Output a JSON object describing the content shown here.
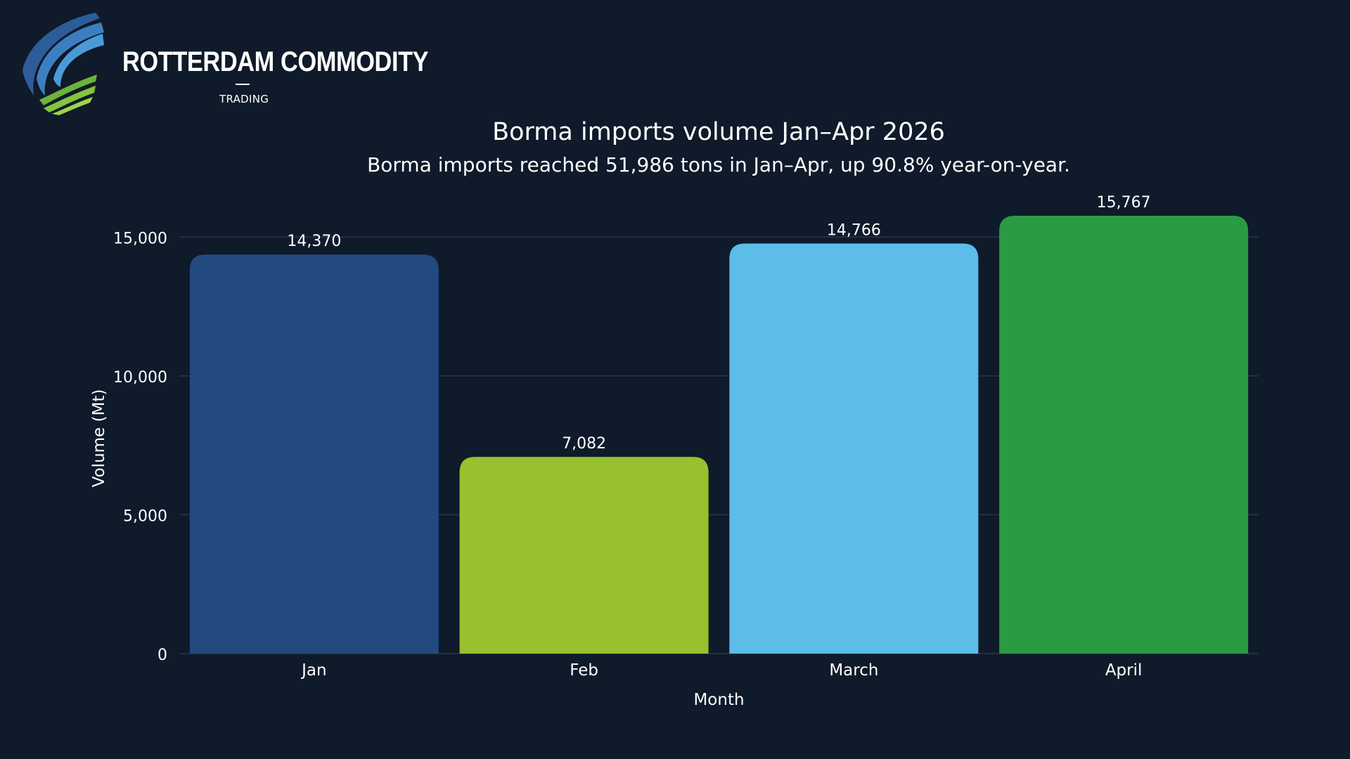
{
  "brand": {
    "name": "ROTTERDAM COMMODITY",
    "tagline": "TRADING"
  },
  "chart_data": {
    "type": "bar",
    "title": "Borma imports volume Jan–Apr 2026",
    "subtitle": "Borma imports reached 51,986 tons in Jan–Apr, up 90.8% year-on-year.",
    "xlabel": "Month",
    "ylabel": "Volume (Mt)",
    "categories": [
      "Jan",
      "Feb",
      "March",
      "April"
    ],
    "values": [
      14370,
      7082,
      14766,
      15767
    ],
    "value_labels": [
      "14,370",
      "7,082",
      "14,766",
      "15,767"
    ],
    "colors": [
      "#224a7f",
      "#97c12e",
      "#5bbde8",
      "#2a9b42"
    ],
    "ylim": [
      0,
      15767
    ],
    "yticks": [
      0,
      5000,
      10000,
      15000
    ],
    "ytick_labels": [
      "0",
      "5,000",
      "10,000",
      "15,000"
    ],
    "grid": true,
    "legend": "none"
  },
  "theme": {
    "background": "#0f1a2a",
    "grid_color": "#2a3648",
    "text_color": "#ffffff"
  }
}
